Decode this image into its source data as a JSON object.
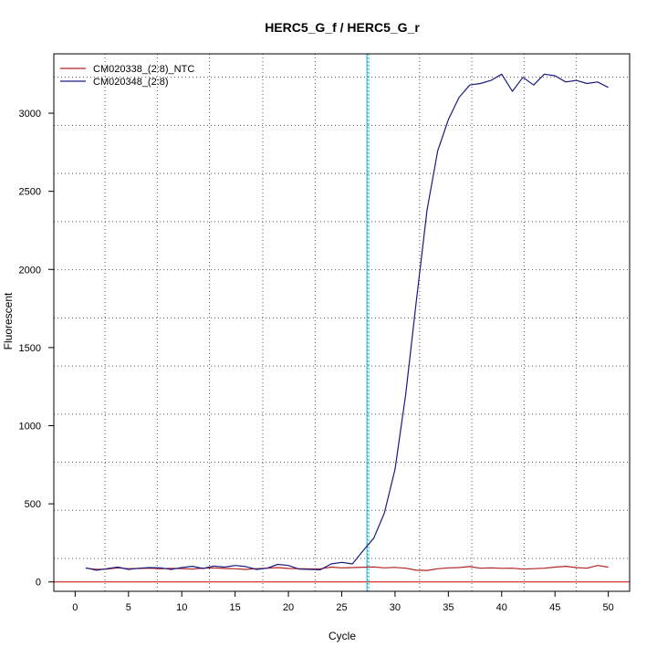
{
  "chart_data": {
    "type": "line",
    "title": "HERC5_G_f / HERC5_G_r",
    "xlabel": "Cycle",
    "ylabel": "Fluorescent",
    "xlim": [
      -2,
      52
    ],
    "ylim": [
      -60,
      3380
    ],
    "x_ticks": [
      0,
      5,
      10,
      15,
      20,
      25,
      30,
      35,
      40,
      45,
      50
    ],
    "y_ticks": [
      0,
      500,
      1000,
      1500,
      2000,
      2500,
      3000
    ],
    "grid": true,
    "grid_x": [
      2.8,
      7.7,
      12.6,
      17.6,
      22.5,
      27.4,
      32.3,
      37.2,
      42.1,
      47.0
    ],
    "grid_y": [
      150,
      458,
      766,
      1074,
      1382,
      1690,
      1998,
      2306,
      2614,
      2922,
      3230
    ],
    "legend_position": "top-left",
    "threshold": {
      "x": 27.45,
      "color": "#00bcd4"
    },
    "baseline": {
      "y": 0,
      "color": "#cc0000"
    },
    "x": [
      1,
      2,
      3,
      4,
      5,
      6,
      7,
      8,
      9,
      10,
      11,
      12,
      13,
      14,
      15,
      16,
      17,
      18,
      19,
      20,
      21,
      22,
      23,
      24,
      25,
      26,
      27,
      28,
      29,
      30,
      31,
      32,
      33,
      34,
      35,
      36,
      37,
      38,
      39,
      40,
      41,
      42,
      43,
      44,
      45,
      46,
      47,
      48,
      49,
      50
    ],
    "series": [
      {
        "name": "CM020338_(2:8)_NTC",
        "color": "#b22222",
        "values": [
          88,
          80,
          82,
          90,
          85,
          86,
          88,
          84,
          87,
          85,
          82,
          88,
          90,
          86,
          84,
          80,
          85,
          88,
          92,
          86,
          85,
          83,
          84,
          95,
          90,
          92,
          94,
          96,
          90,
          93,
          88,
          75,
          74,
          84,
          90,
          92,
          98,
          88,
          90,
          87,
          88,
          82,
          85,
          88,
          95,
          100,
          92,
          88,
          105,
          95
        ]
      },
      {
        "name": "CM020348_(2:8)",
        "color": "#1a1a80",
        "values": [
          90,
          75,
          85,
          95,
          80,
          88,
          92,
          90,
          80,
          92,
          100,
          86,
          102,
          95,
          105,
          98,
          80,
          88,
          112,
          105,
          82,
          80,
          78,
          115,
          125,
          115,
          200,
          280,
          440,
          720,
          1200,
          1800,
          2380,
          2760,
          2960,
          3100,
          3180,
          3190,
          3210,
          3250,
          3140,
          3230,
          3180,
          3250,
          3240,
          3200,
          3210,
          3190,
          3200,
          3165
        ]
      }
    ]
  }
}
